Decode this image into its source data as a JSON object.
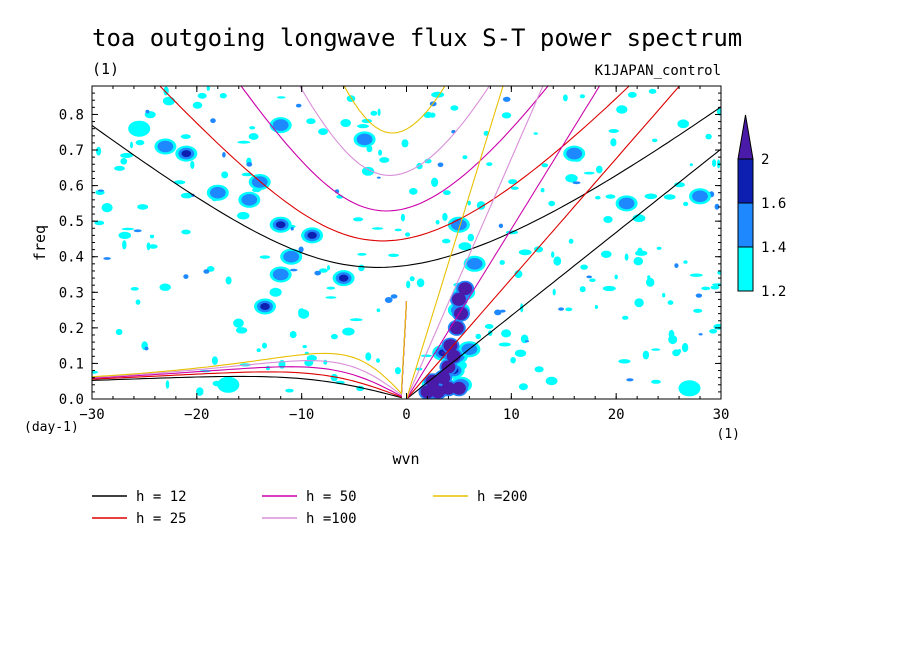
{
  "chart_data": {
    "type": "heatmap",
    "title": "toa outgoing longwave flux S-T power spectrum",
    "subtitle_left": "(1)",
    "subtitle_right": "K1JAPAN_control",
    "xlabel": "wvn",
    "ylabel": "freq",
    "x_unit": "(1)",
    "y_unit": "(day-1)",
    "xlim": [
      -30,
      30
    ],
    "ylim": [
      0,
      0.88
    ],
    "xticks": [
      -30,
      -20,
      -10,
      0,
      10,
      20,
      30
    ],
    "xtick_labels": [
      "−30",
      "−20",
      "−10",
      "0",
      "10",
      "20",
      "30"
    ],
    "yticks": [
      0,
      0.1,
      0.2,
      0.3,
      0.4,
      0.5,
      0.6,
      0.7,
      0.8
    ],
    "ytick_labels": [
      "0.0",
      "0.1",
      "0.2",
      "0.3",
      "0.4",
      "0.5",
      "0.6",
      "0.7",
      "0.8"
    ],
    "colorbar": {
      "levels": [
        1.2,
        1.4,
        1.6,
        2
      ],
      "labels": [
        "1.2",
        "1.4",
        "1.6",
        "2"
      ],
      "colors": [
        "#00ffff",
        "#1e88ff",
        "#0d1fb0",
        "#4a1aa8"
      ]
    },
    "dispersion_curves": [
      {
        "label": "h = 12",
        "h": 12,
        "color": "#000000"
      },
      {
        "label": "h = 25",
        "h": 25,
        "color": "#dd0000"
      },
      {
        "label": "h = 50",
        "h": 50,
        "color": "#cc00aa"
      },
      {
        "label": "h =100",
        "h": 100,
        "color": "#d98fd9"
      },
      {
        "label": "h =200",
        "h": 200,
        "color": "#e8c000"
      }
    ],
    "blobs": [
      {
        "x": 3.5,
        "y": 0.03,
        "level": 3
      },
      {
        "x": 4.5,
        "y": 0.08,
        "level": 3
      },
      {
        "x": 3.5,
        "y": 0.13,
        "level": 3
      },
      {
        "x": 5.0,
        "y": 0.25,
        "level": 3
      },
      {
        "x": 5.5,
        "y": 0.3,
        "level": 2
      },
      {
        "x": 4.8,
        "y": 0.12,
        "level": 2
      },
      {
        "x": 6.5,
        "y": 0.38,
        "level": 1
      },
      {
        "x": 6.0,
        "y": 0.14,
        "level": 1
      },
      {
        "x": 2.5,
        "y": 0.04,
        "level": 2
      },
      {
        "x": 5.2,
        "y": 0.04,
        "level": 3
      },
      {
        "x": -21,
        "y": 0.69,
        "level": 2
      },
      {
        "x": -23,
        "y": 0.71,
        "level": 1
      },
      {
        "x": -12,
        "y": 0.49,
        "level": 2
      },
      {
        "x": -12,
        "y": 0.35,
        "level": 1
      },
      {
        "x": -6,
        "y": 0.34,
        "level": 2
      },
      {
        "x": -9,
        "y": 0.46,
        "level": 2
      },
      {
        "x": -13.5,
        "y": 0.26,
        "level": 2
      },
      {
        "x": -14,
        "y": 0.61,
        "level": 1
      },
      {
        "x": -15,
        "y": 0.56,
        "level": 1
      },
      {
        "x": -18,
        "y": 0.58,
        "level": 1
      },
      {
        "x": -12,
        "y": 0.77,
        "level": 1
      },
      {
        "x": -4,
        "y": 0.73,
        "level": 1
      },
      {
        "x": -11,
        "y": 0.4,
        "level": 1
      },
      {
        "x": 16,
        "y": 0.69,
        "level": 1
      },
      {
        "x": 28,
        "y": 0.57,
        "level": 1
      },
      {
        "x": 21,
        "y": 0.55,
        "level": 1
      },
      {
        "x": 5,
        "y": 0.49,
        "level": 1
      },
      {
        "x": -25.5,
        "y": 0.76,
        "level": 0
      },
      {
        "x": 27,
        "y": 0.03,
        "level": 0
      },
      {
        "x": -17,
        "y": 0.04,
        "level": 0
      }
    ]
  }
}
